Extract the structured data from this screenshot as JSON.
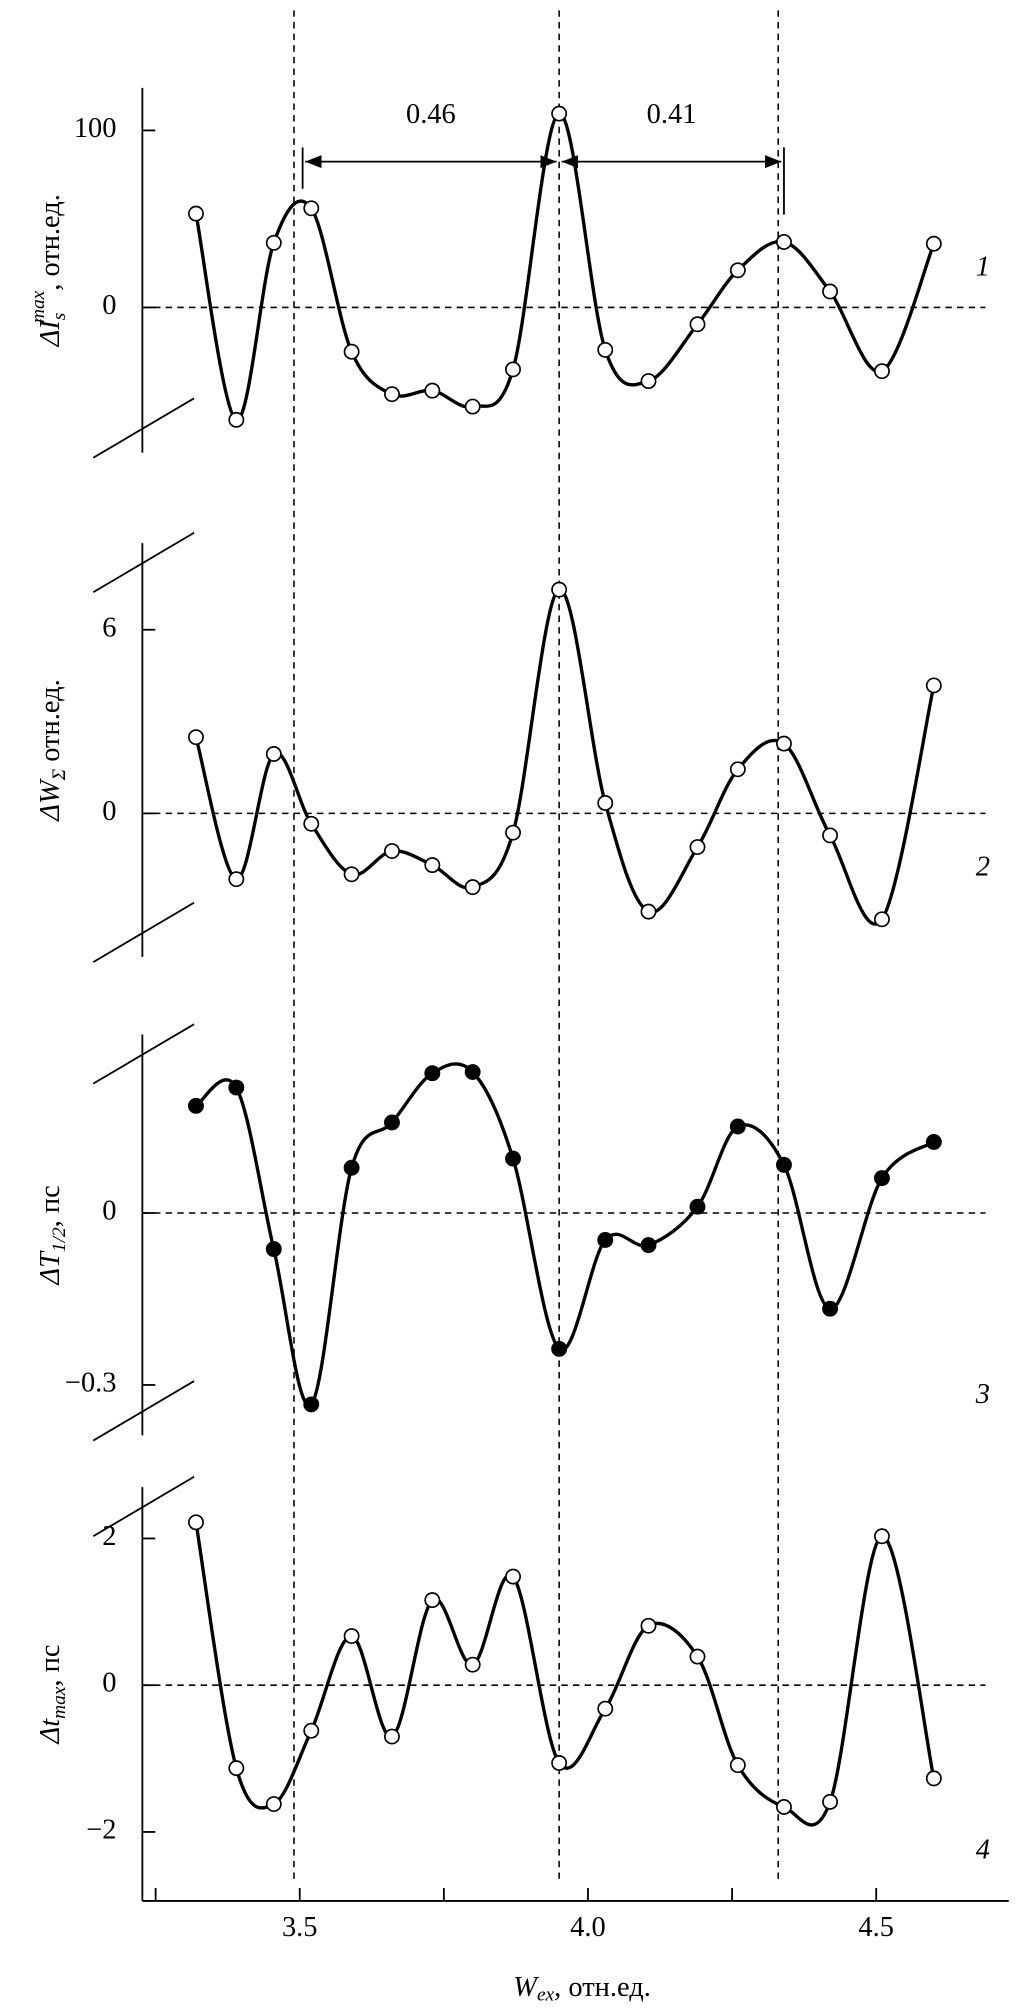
{
  "chart_data": {
    "type": "line",
    "x": [
      3.32,
      3.39,
      3.455,
      3.52,
      3.59,
      3.66,
      3.73,
      3.8,
      3.87,
      3.95,
      4.03,
      4.105,
      4.19,
      4.26,
      4.34,
      4.42,
      4.51,
      4.6
    ],
    "xlim": [
      3.227,
      4.73
    ],
    "xticks": [
      3.5,
      {
        "value": 4.0,
        "label": "4.0"
      },
      4.5
    ],
    "xminorticks": [
      3.25,
      3.75,
      4.25
    ],
    "xlabel": {
      "main": "W",
      "sub": "ex",
      "rest": ", отн.ед."
    },
    "color": "#000000",
    "vlines": [
      3.49,
      3.95,
      4.33
    ],
    "annotations": [
      {
        "from": 3.505,
        "to": 3.95,
        "label": "0.46"
      },
      {
        "from": 3.95,
        "to": 4.34,
        "label": "0.41"
      }
    ],
    "panels": [
      {
        "ylabel": {
          "main": "ΔI",
          "sub": "s",
          "sup": "max",
          "rest": ", отн.ед."
        },
        "curve_label": "1",
        "marker": "open",
        "ylim": [
          -82,
          124
        ],
        "yticks": [
          0,
          100
        ],
        "values": [
          53,
          -63.5,
          36.5,
          56,
          -25,
          -49,
          -47,
          -56,
          -35,
          109.5,
          -24,
          -41.6,
          -9.5,
          21,
          37,
          9,
          -36,
          36
        ]
      },
      {
        "ylabel": {
          "main": "ΔW",
          "sub": "Σ",
          "rest": " отн.ед."
        },
        "curve_label": "2",
        "marker": "open",
        "ylim": [
          -4.69,
          8.83
        ],
        "yticks": [
          0,
          6
        ],
        "values": [
          2.49,
          -2.15,
          1.94,
          -0.34,
          -1.99,
          -1.23,
          -1.69,
          -2.41,
          -0.63,
          7.31,
          0.34,
          -3.21,
          -1.1,
          1.44,
          2.28,
          -0.72,
          -3.46,
          4.18
        ]
      },
      {
        "ylabel": {
          "main": "ΔT",
          "sub": "1/2",
          "rest": ", пс"
        },
        "curve_label": "3",
        "marker": "filled",
        "ylim": [
          -0.388,
          0.3115
        ],
        "yticks": [
          {
            "value": -0.3,
            "label": "−0.3"
          },
          0
        ],
        "values": [
          0.187,
          0.219,
          -0.063,
          -0.334,
          0.079,
          0.158,
          0.244,
          0.246,
          0.095,
          -0.237,
          -0.047,
          -0.056,
          0.011,
          0.151,
          0.084,
          -0.167,
          0.061,
          0.124
        ]
      },
      {
        "ylabel": {
          "main": "Δt",
          "sub": "max",
          "rest": ", пс"
        },
        "curve_label": "4",
        "marker": "open",
        "ylim": [
          -2.94,
          2.7
        ],
        "yticks": [
          {
            "value": -2,
            "label": "−2"
          },
          0,
          2
        ],
        "values": [
          2.22,
          -1.13,
          -1.62,
          -0.62,
          0.67,
          -0.7,
          1.16,
          0.28,
          1.48,
          -1.06,
          -0.32,
          0.81,
          0.39,
          -1.09,
          -1.66,
          -1.59,
          2.03,
          -1.27
        ]
      }
    ]
  }
}
